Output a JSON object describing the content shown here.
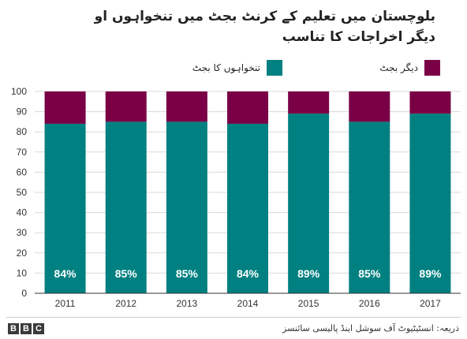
{
  "title_line1": "بلوچستان میں تعلیم کے کرنٹ بجٹ میں تنخواہوں او",
  "title_line2": "دیگر اخراجات کا تناسب",
  "source": "ذریعہ: انسٹیٹیوٹ آف سوشل اینڈ پالیسی سائنسز",
  "logo": [
    "B",
    "B",
    "C"
  ],
  "colors": {
    "salary": "#008080",
    "other": "#7a0046",
    "grid": "#d9d9d9",
    "axis": "#333333"
  },
  "chart_data": {
    "type": "bar",
    "stacked": true,
    "categories": [
      "2011",
      "2012",
      "2013",
      "2014",
      "2015",
      "2016",
      "2017"
    ],
    "series": [
      {
        "name": "تنخواہوں کا بجٹ",
        "values": [
          84,
          85,
          85,
          84,
          89,
          85,
          89
        ],
        "labels": [
          "84%",
          "85%",
          "85%",
          "84%",
          "89%",
          "85%",
          "89%"
        ]
      },
      {
        "name": "دیگر بجٹ",
        "values": [
          16,
          15,
          15,
          16,
          11,
          15,
          11
        ]
      }
    ],
    "yticks": [
      "0",
      "10",
      "20",
      "30",
      "40",
      "50",
      "60",
      "70",
      "80",
      "90",
      "100"
    ],
    "ylim": [
      0,
      100
    ],
    "grid": true,
    "legend_position": "top"
  }
}
